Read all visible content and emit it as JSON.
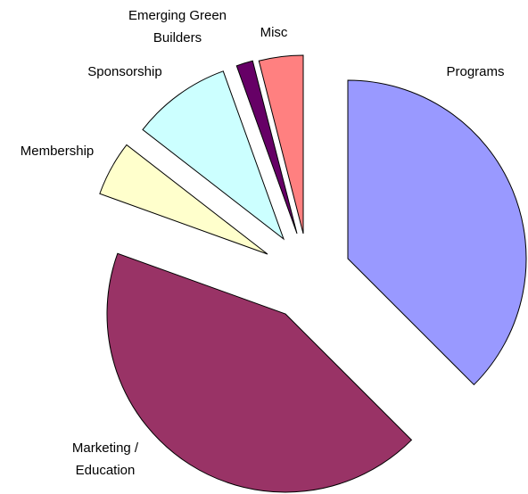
{
  "chart_data": {
    "type": "pie",
    "categories": [
      "Programs",
      "Marketing / Education",
      "Membership",
      "Sponsorship",
      "Emerging Green Builders",
      "Misc"
    ],
    "values": [
      37.5,
      43,
      5,
      9,
      1.5,
      4
    ],
    "colors": [
      "#9999ff",
      "#993366",
      "#ffffcc",
      "#ccffff",
      "#660066",
      "#ff8080"
    ],
    "start_angle": 0,
    "direction": "clockwise",
    "exploded": true
  }
}
